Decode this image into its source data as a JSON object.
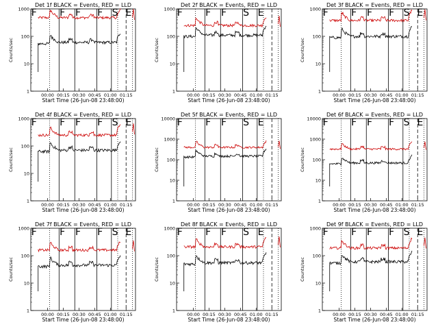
{
  "chart_data": [
    {
      "type": "line",
      "title": "Det 1f BLACK = Events, RED = LLD",
      "red_level": 480,
      "black_level": 60,
      "red_late": 500,
      "ticks": [
        "00:00",
        "00:15",
        "00:30",
        "00:45",
        "01:00",
        "01:15"
      ],
      "yticks": [
        "1",
        "10",
        "100",
        "1000"
      ],
      "xlabel": "Start Time (26-Jun-08 23:48:00)",
      "ylabel": "Counts/sec",
      "ylim": [
        1,
        1000
      ],
      "markers": [
        "F",
        "F",
        "F",
        "F",
        "S",
        "E"
      ],
      "series": [
        {
          "color": "#cc0000",
          "values": []
        },
        {
          "color": "#000000",
          "values": []
        }
      ]
    },
    {
      "type": "line",
      "title": "Det 2f BLACK = Events, RED = LLD",
      "red_level": 250,
      "black_level": 110,
      "red_late": 280,
      "ticks": [
        "00:00",
        "00:15",
        "00:30",
        "00:45",
        "01:00",
        "01:15"
      ],
      "yticks": [
        "1",
        "10",
        "100",
        "1000"
      ],
      "xlabel": "Start Time (26-Jun-08 23:48:00)",
      "ylabel": "Counts/sec",
      "ylim": [
        1,
        1000
      ],
      "markers": [
        "F",
        "F",
        "F",
        "S",
        "E"
      ],
      "series": [
        {
          "color": "#cc0000",
          "values": []
        },
        {
          "color": "#000000",
          "values": []
        }
      ]
    },
    {
      "type": "line",
      "title": "Det 3f BLACK = Events, RED = LLD",
      "red_level": 380,
      "black_level": 100,
      "red_late": 480,
      "ticks": [
        "00:00",
        "00:15",
        "00:30",
        "00:45",
        "01:00",
        "01:15"
      ],
      "yticks": [
        "1",
        "10",
        "100",
        "1000"
      ],
      "xlabel": "Start Time (26-Jun-08 23:48:00)",
      "ylabel": "Counts/sec",
      "ylim": [
        1,
        1000
      ],
      "markers": [
        "F",
        "F",
        "F",
        "F",
        "S",
        "E"
      ],
      "series": [
        {
          "color": "#cc0000",
          "values": []
        },
        {
          "color": "#000000",
          "values": []
        }
      ]
    },
    {
      "type": "line",
      "title": "Det 4f BLACK = Events, RED = LLD",
      "red_level": 250,
      "black_level": 70,
      "red_late": 330,
      "ticks": [
        "00:00",
        "00:15",
        "00:30",
        "00:45",
        "01:00",
        "01:15"
      ],
      "yticks": [
        "1",
        "10",
        "100",
        "1000"
      ],
      "xlabel": "Start Time (26-Jun-08 23:48:00)",
      "ylabel": "Counts/sec",
      "ylim": [
        1,
        1000
      ],
      "markers": [
        "F",
        "F",
        "F",
        "F",
        "S",
        "E"
      ],
      "series": [
        {
          "color": "#cc0000",
          "values": []
        },
        {
          "color": "#000000",
          "values": []
        }
      ]
    },
    {
      "type": "line",
      "title": "Det 5f BLACK = Events, RED = LLD",
      "red_level": 400,
      "black_level": 150,
      "red_late": 420,
      "ticks": [
        "00:00",
        "00:15",
        "00:30",
        "00:45",
        "01:00",
        "01:15"
      ],
      "yticks": [
        "1",
        "10",
        "100",
        "1000",
        "10000"
      ],
      "xlabel": "Start Time (26-Jun-08 23:48:00)",
      "ylabel": "Counts/sec",
      "ylim": [
        1,
        10000
      ],
      "markers": [
        "F",
        "F",
        "F",
        "S",
        "E"
      ],
      "series": [
        {
          "color": "#cc0000",
          "values": []
        },
        {
          "color": "#000000",
          "values": []
        }
      ]
    },
    {
      "type": "line",
      "title": "Det 6f BLACK = Events, RED = LLD",
      "red_level": 330,
      "black_level": 70,
      "red_late": 380,
      "ticks": [
        "00:00",
        "00:15",
        "00:30",
        "00:45",
        "01:00",
        "01:15"
      ],
      "yticks": [
        "1",
        "10",
        "100",
        "1000",
        "10000"
      ],
      "xlabel": "Start Time (26-Jun-08 23:48:00)",
      "ylabel": "Counts/sec",
      "ylim": [
        1,
        10000
      ],
      "markers": [
        "F",
        "F",
        "F",
        "F",
        "S",
        "E"
      ],
      "series": [
        {
          "color": "#cc0000",
          "values": []
        },
        {
          "color": "#000000",
          "values": []
        }
      ]
    },
    {
      "type": "line",
      "title": "Det 7f BLACK = Events, RED = LLD",
      "red_level": 160,
      "black_level": 45,
      "red_late": 180,
      "ticks": [
        "00:00",
        "00:15",
        "00:30",
        "00:45",
        "01:00",
        "01:15"
      ],
      "yticks": [
        "1",
        "10",
        "100",
        "1000"
      ],
      "xlabel": "Start Time (26-Jun-08 23:48:00)",
      "ylabel": "Counts/sec",
      "ylim": [
        1,
        1000
      ],
      "markers": [
        "F",
        "F",
        "F",
        "F",
        "S",
        "E"
      ],
      "series": [
        {
          "color": "#cc0000",
          "values": []
        },
        {
          "color": "#000000",
          "values": []
        }
      ]
    },
    {
      "type": "line",
      "title": "Det 8f BLACK = Events, RED = LLD",
      "red_level": 210,
      "black_level": 55,
      "red_late": 250,
      "ticks": [
        "00:00",
        "00:15",
        "00:30",
        "00:45",
        "01:00",
        "01:15"
      ],
      "yticks": [
        "1",
        "10",
        "100",
        "1000"
      ],
      "xlabel": "Start Time (26-Jun-08 23:48:00)",
      "ylabel": "Counts/sec",
      "ylim": [
        1,
        1000
      ],
      "markers": [
        "F",
        "F",
        "F",
        "S",
        "E"
      ],
      "series": [
        {
          "color": "#cc0000",
          "values": []
        },
        {
          "color": "#000000",
          "values": []
        }
      ]
    },
    {
      "type": "line",
      "title": "Det 9f BLACK = Events, RED = LLD",
      "red_level": 190,
      "black_level": 60,
      "red_late": 230,
      "ticks": [
        "00:00",
        "00:15",
        "00:30",
        "00:45",
        "01:00",
        "01:15"
      ],
      "yticks": [
        "1",
        "10",
        "100",
        "1000"
      ],
      "xlabel": "Start Time (26-Jun-08 23:48:00)",
      "ylabel": "Counts/sec",
      "ylim": [
        1,
        1000
      ],
      "markers": [
        "F",
        "F",
        "F",
        "F",
        "S",
        "E"
      ],
      "series": [
        {
          "color": "#cc0000",
          "values": []
        },
        {
          "color": "#000000",
          "values": []
        }
      ]
    }
  ]
}
